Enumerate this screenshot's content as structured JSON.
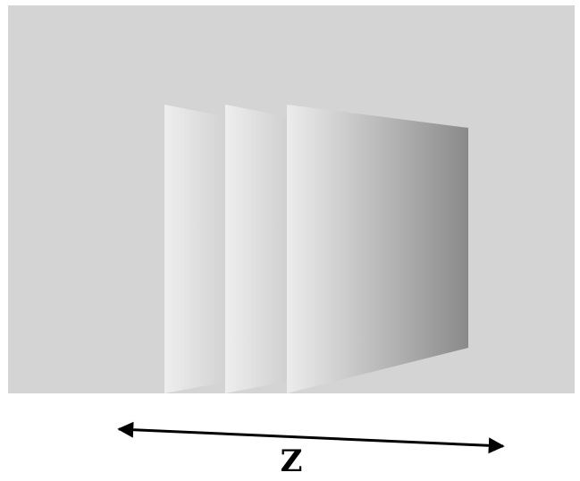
{
  "axis": {
    "label": "Z"
  },
  "colors": {
    "background_panel": "#d4d4d4",
    "page_background": "#ffffff",
    "plate_light": "#ececec",
    "plate_dark": "#8a8a8a",
    "arrow": "#000000"
  },
  "plates": {
    "count": 3
  }
}
